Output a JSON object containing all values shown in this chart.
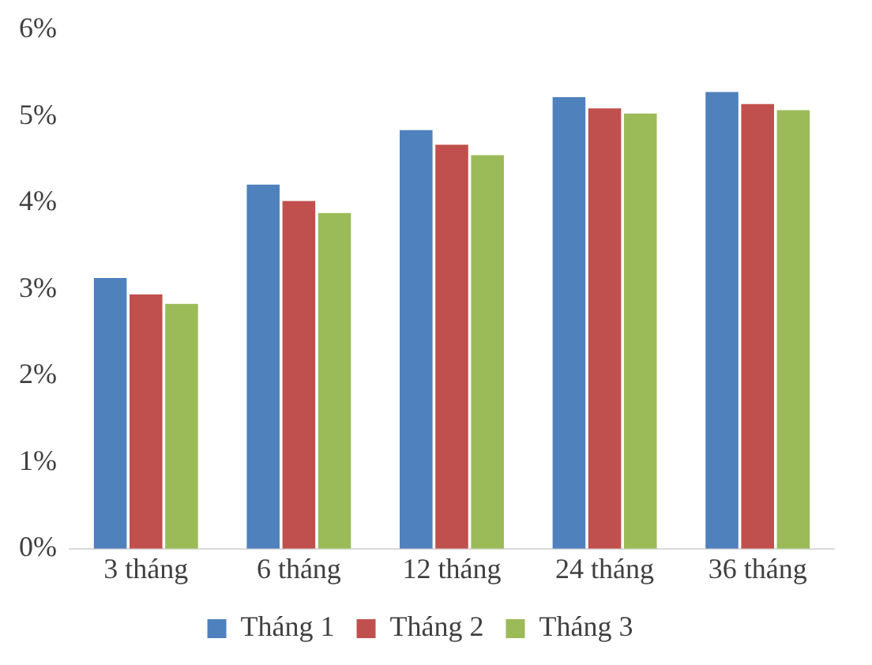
{
  "chart_data": {
    "type": "bar",
    "categories": [
      "3 tháng",
      "6 tháng",
      "12 tháng",
      "24 tháng",
      "36 tháng"
    ],
    "series": [
      {
        "name": "Tháng 1",
        "color": "#4f81bd",
        "values": [
          3.13,
          4.21,
          4.84,
          5.22,
          5.28
        ]
      },
      {
        "name": "Tháng 2",
        "color": "#c0504d",
        "values": [
          2.94,
          4.02,
          4.67,
          5.09,
          5.14
        ]
      },
      {
        "name": "Tháng 3",
        "color": "#9bbb59",
        "values": [
          2.83,
          3.88,
          4.55,
          5.03,
          5.07
        ]
      }
    ],
    "ylim": [
      0,
      6
    ],
    "yticks": [
      {
        "value": 0,
        "label": "0%"
      },
      {
        "value": 1,
        "label": "1%"
      },
      {
        "value": 2,
        "label": "2%"
      },
      {
        "value": 3,
        "label": "3%"
      },
      {
        "value": 4,
        "label": "4%"
      },
      {
        "value": 5,
        "label": "5%"
      },
      {
        "value": 6,
        "label": "6%"
      }
    ],
    "grid": false,
    "legend": "bottom"
  }
}
